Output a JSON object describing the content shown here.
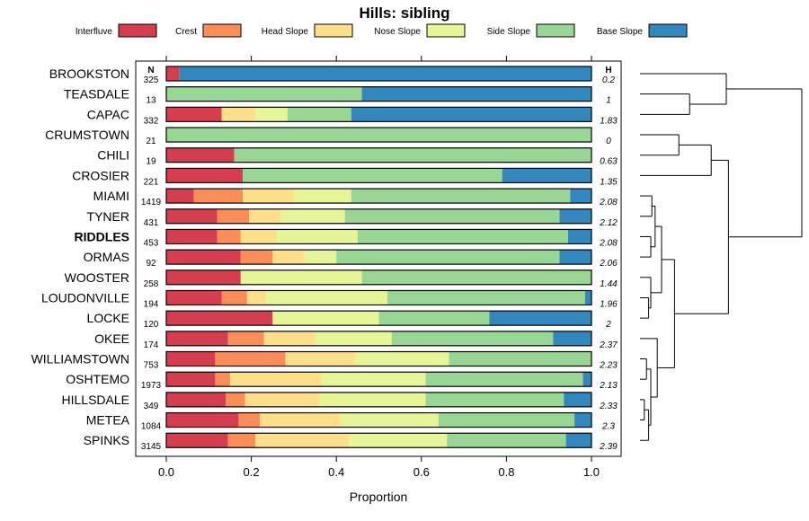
{
  "chart_data": {
    "type": "bar",
    "subtype": "stacked-horizontal-proportion",
    "title": "Hills: sibling",
    "xlabel": "Proportion",
    "ylabel": "",
    "xlim": [
      0,
      1
    ],
    "x_ticks": [
      "0.0",
      "0.2",
      "0.4",
      "0.6",
      "0.8",
      "1.0"
    ],
    "x_tick_values": [
      0,
      0.2,
      0.4,
      0.6,
      0.8,
      1.0
    ],
    "n_header": "N",
    "h_header": "H",
    "legend_position": "top",
    "components": [
      {
        "name": "Interfluve",
        "color": "#d53e4f"
      },
      {
        "name": "Crest",
        "color": "#fc8d59"
      },
      {
        "name": "Head Slope",
        "color": "#fee08b"
      },
      {
        "name": "Nose Slope",
        "color": "#e6f598"
      },
      {
        "name": "Side Slope",
        "color": "#99d594"
      },
      {
        "name": "Base Slope",
        "color": "#3288bd"
      }
    ],
    "rows": [
      {
        "label": "BROOKSTON",
        "bold": false,
        "n": "325",
        "h": "0.2",
        "values": [
          0.03,
          0,
          0,
          0,
          0,
          0.97
        ]
      },
      {
        "label": "TEASDALE",
        "bold": false,
        "n": "13",
        "h": "1",
        "values": [
          0,
          0,
          0,
          0,
          0.46,
          0.54
        ]
      },
      {
        "label": "CAPAC",
        "bold": false,
        "n": "332",
        "h": "1.83",
        "values": [
          0.13,
          0,
          0.08,
          0.075,
          0.15,
          0.565
        ]
      },
      {
        "label": "CRUMSTOWN",
        "bold": false,
        "n": "21",
        "h": "0",
        "values": [
          0,
          0,
          0,
          0,
          1.0,
          0
        ]
      },
      {
        "label": "CHILI",
        "bold": false,
        "n": "19",
        "h": "0.63",
        "values": [
          0.16,
          0,
          0,
          0,
          0.84,
          0
        ]
      },
      {
        "label": "CROSIER",
        "bold": false,
        "n": "221",
        "h": "1.35",
        "values": [
          0.18,
          0,
          0,
          0,
          0.61,
          0.21
        ]
      },
      {
        "label": "MIAMI",
        "bold": false,
        "n": "1419",
        "h": "2.08",
        "values": [
          0.065,
          0.115,
          0.12,
          0.135,
          0.515,
          0.05
        ]
      },
      {
        "label": "TYNER",
        "bold": false,
        "n": "431",
        "h": "2.12",
        "values": [
          0.12,
          0.075,
          0.075,
          0.15,
          0.505,
          0.075
        ]
      },
      {
        "label": "RIDDLES",
        "bold": true,
        "n": "453",
        "h": "2.08",
        "values": [
          0.12,
          0.055,
          0.085,
          0.19,
          0.495,
          0.055
        ]
      },
      {
        "label": "ORMAS",
        "bold": false,
        "n": "92",
        "h": "2.06",
        "values": [
          0.175,
          0.075,
          0.075,
          0.075,
          0.525,
          0.075
        ]
      },
      {
        "label": "WOOSTER",
        "bold": false,
        "n": "258",
        "h": "1.44",
        "values": [
          0.175,
          0,
          0,
          0.285,
          0.54,
          0
        ]
      },
      {
        "label": "LOUDONVILLE",
        "bold": false,
        "n": "194",
        "h": "1.96",
        "values": [
          0.13,
          0.06,
          0.045,
          0.285,
          0.465,
          0.015
        ]
      },
      {
        "label": "LOCKE",
        "bold": false,
        "n": "120",
        "h": "2",
        "values": [
          0.25,
          0,
          0,
          0.25,
          0.26,
          0.24
        ]
      },
      {
        "label": "OKEE",
        "bold": false,
        "n": "174",
        "h": "2.37",
        "values": [
          0.145,
          0.085,
          0.12,
          0.18,
          0.38,
          0.09
        ]
      },
      {
        "label": "WILLIAMSTOWN",
        "bold": false,
        "n": "753",
        "h": "2.23",
        "values": [
          0.115,
          0.165,
          0.165,
          0.22,
          0.335,
          0
        ]
      },
      {
        "label": "OSHTEMO",
        "bold": false,
        "n": "1973",
        "h": "2.13",
        "values": [
          0.115,
          0.035,
          0.215,
          0.245,
          0.37,
          0.02
        ]
      },
      {
        "label": "HILLSDALE",
        "bold": false,
        "n": "349",
        "h": "2.33",
        "values": [
          0.14,
          0.045,
          0.175,
          0.25,
          0.325,
          0.065
        ]
      },
      {
        "label": "METEA",
        "bold": false,
        "n": "1084",
        "h": "2.3",
        "values": [
          0.17,
          0.05,
          0.19,
          0.23,
          0.32,
          0.04
        ]
      },
      {
        "label": "SPINKS",
        "bold": false,
        "n": "3145",
        "h": "2.39",
        "values": [
          0.145,
          0.065,
          0.22,
          0.23,
          0.28,
          0.06
        ]
      }
    ],
    "dendrogram": {
      "merges": [
        [
          -2,
          -3,
          0.23
        ],
        [
          -1,
          1,
          0.4
        ],
        [
          -4,
          -5,
          0.18
        ],
        [
          -6,
          3,
          0.33
        ],
        [
          -7,
          -8,
          0.055
        ],
        [
          -9,
          -10,
          0.05
        ],
        [
          5,
          6,
          0.07
        ],
        [
          -12,
          -13,
          0.04
        ],
        [
          8,
          -11,
          0.05
        ],
        [
          7,
          9,
          0.1
        ],
        [
          -15,
          -16,
          0.03
        ],
        [
          -17,
          -18,
          0.02
        ],
        [
          12,
          -19,
          0.04
        ],
        [
          11,
          13,
          0.05
        ],
        [
          -14,
          14,
          0.08
        ],
        [
          10,
          15,
          0.16
        ],
        [
          4,
          16,
          0.41
        ],
        [
          2,
          17,
          0.75
        ]
      ]
    }
  }
}
